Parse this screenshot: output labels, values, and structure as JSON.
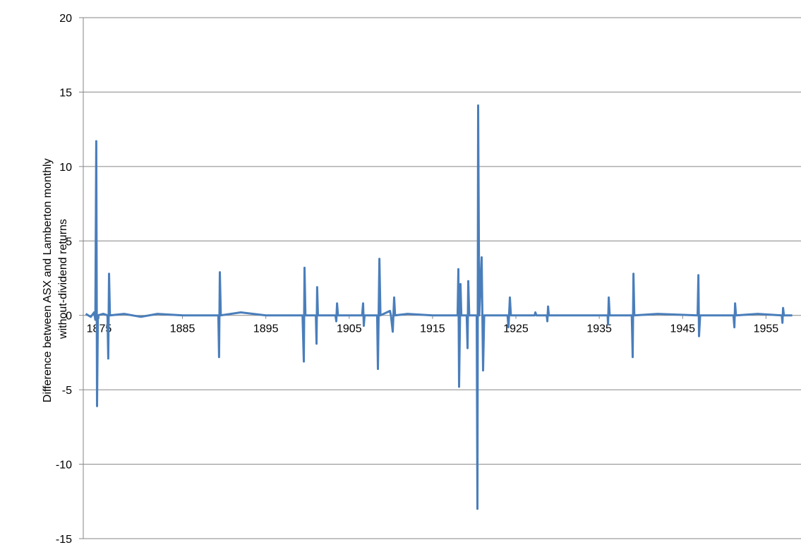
{
  "chart_data": {
    "type": "line",
    "ylabel": [
      "Difference between ASX and Lamberton monthly",
      "without-dividend returns"
    ],
    "xlim": [
      1873.1,
      1959.2
    ],
    "ylim": [
      -15,
      20
    ],
    "xticks": [
      1875,
      1885,
      1895,
      1905,
      1915,
      1925,
      1935,
      1945,
      1955
    ],
    "yticks": [
      -15,
      -10,
      -5,
      0,
      5,
      10,
      15,
      20
    ],
    "grid": true,
    "x": [
      1873.4,
      1874.0,
      1874.4,
      1874.55,
      1874.66,
      1874.75,
      1874.85,
      1875.5,
      1876.0,
      1876.1,
      1876.19,
      1876.3,
      1878,
      1880,
      1882,
      1885,
      1889.3,
      1889.39,
      1889.48,
      1889.6,
      1892,
      1895,
      1899.4,
      1899.56,
      1899.64,
      1899.75,
      1901.0,
      1901.08,
      1901.16,
      1901.25,
      1903.35,
      1903.45,
      1903.54,
      1903.65,
      1906.55,
      1906.67,
      1906.75,
      1906.85,
      1908.35,
      1908.45,
      1908.62,
      1908.75,
      1909.89,
      1910.0,
      1910.22,
      1910.39,
      1910.5,
      1912,
      1915,
      1918.0,
      1918.1,
      1918.18,
      1918.35,
      1918.45,
      1919.1,
      1919.2,
      1919.28,
      1919.4,
      1920.3,
      1920.38,
      1920.47,
      1920.6,
      1920.89,
      1921.06,
      1921.2,
      1924.0,
      1924.11,
      1924.28,
      1924.4,
      1927.25,
      1927.33,
      1927.45,
      1928.7,
      1928.77,
      1928.86,
      1928.95,
      1936.0,
      1936.05,
      1936.14,
      1936.25,
      1938.9,
      1939.01,
      1939.1,
      1939.2,
      1942,
      1946.8,
      1946.89,
      1946.97,
      1947.1,
      1951.1,
      1951.21,
      1951.29,
      1951.4,
      1954,
      1956.9,
      1956.97,
      1957.05,
      1957.15,
      1958.15
    ],
    "series": [
      {
        "color": "#4a7ebb",
        "values": [
          0.1,
          -0.1,
          0.2,
          -0.3,
          11.7,
          -6.1,
          0,
          0.1,
          0,
          -2.9,
          2.8,
          0,
          0.1,
          -0.1,
          0.1,
          0,
          0,
          -2.8,
          2.9,
          0,
          0.2,
          0,
          0,
          -3.1,
          3.2,
          0,
          0,
          -1.9,
          1.9,
          0,
          0,
          -0.4,
          0.8,
          0,
          0,
          0.8,
          -0.7,
          0,
          0,
          -3.6,
          3.8,
          0,
          0.3,
          0,
          -1.1,
          1.2,
          0,
          0.1,
          0,
          0,
          3.1,
          -4.8,
          2.1,
          0,
          0,
          -2.2,
          2.3,
          0,
          0,
          -13,
          14.1,
          0,
          3.9,
          -3.7,
          0,
          0,
          -0.8,
          1.2,
          0,
          0,
          0.2,
          0,
          0,
          -0.4,
          0.6,
          0,
          0,
          -0.6,
          1.2,
          0,
          0,
          -2.8,
          2.8,
          0,
          0.1,
          0,
          2.7,
          -1.4,
          0,
          0,
          -0.8,
          0.8,
          0,
          0.1,
          0,
          -0.5,
          0.5,
          0,
          0
        ]
      }
    ]
  }
}
